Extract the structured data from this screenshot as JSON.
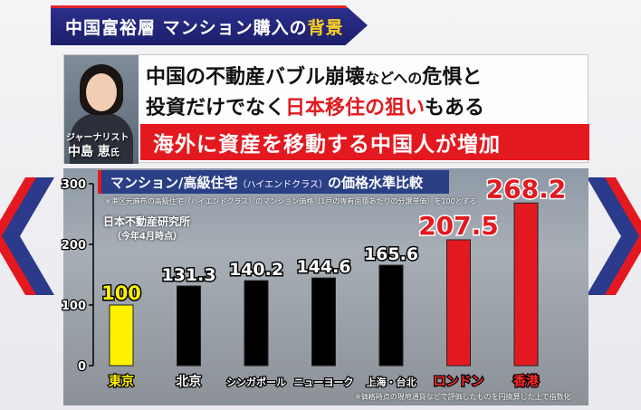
{
  "banner": {
    "prefix": "中国富裕層 マンション購入の",
    "highlight": "背景"
  },
  "quote": {
    "role": "ジャーナリスト",
    "name": "中島 恵",
    "honorific": "氏",
    "line1_a": "中国の不動産バブル崩壊",
    "line1_b": "などへの",
    "line1_c": "危惧と",
    "line2_a": "投資だけでなく",
    "line2_b": "日本移住の狙い",
    "line2_c": "もある",
    "line3": "海外に資産を移動する中国人が増加"
  },
  "chart_header": {
    "title_a": "マンション/高級住宅",
    "title_b": "（ハイエンドクラス）",
    "title_c": "の価格水準比較",
    "note": "※港区元麻布の高級住宅（ハイエンドクラス）のマンション価格（1戸の専有面積あたりの分譲単価）を100とする",
    "source": "日本不動産研究所",
    "source_sub": "（今年4月時点）",
    "footnote": "※価格時点の現地通貨などで評価したものを円換算した上で指数化"
  },
  "chart_data": {
    "type": "bar",
    "title": "マンション/高級住宅（ハイエンドクラス）の価格水準比較",
    "categories": [
      "東京",
      "北京",
      "シンガポール",
      "ニューヨーク",
      "上海・台北",
      "ロンドン",
      "香港"
    ],
    "values": [
      100,
      131.3,
      140.2,
      144.6,
      165.6,
      207.5,
      268.2
    ],
    "labels": [
      "100",
      "131.3",
      "140.2",
      "144.6",
      "165.6",
      "207.5",
      "268.2"
    ],
    "ylim": [
      0,
      300
    ],
    "yticks": [
      "0",
      "100",
      "200",
      "300"
    ],
    "grid": false,
    "colors": {
      "highlight_low": "#fff200",
      "normal": "#000000",
      "highlight_high": "#e3191f",
      "label_low": "#fff200",
      "label_normal": "#ffffff",
      "label_high": "#e3191f"
    },
    "bar_color_keys": [
      "highlight_low",
      "normal",
      "normal",
      "normal",
      "normal",
      "highlight_high",
      "highlight_high"
    ],
    "label_color_keys": [
      "label_low",
      "label_normal",
      "label_normal",
      "label_normal",
      "label_normal",
      "label_high",
      "label_high"
    ]
  }
}
